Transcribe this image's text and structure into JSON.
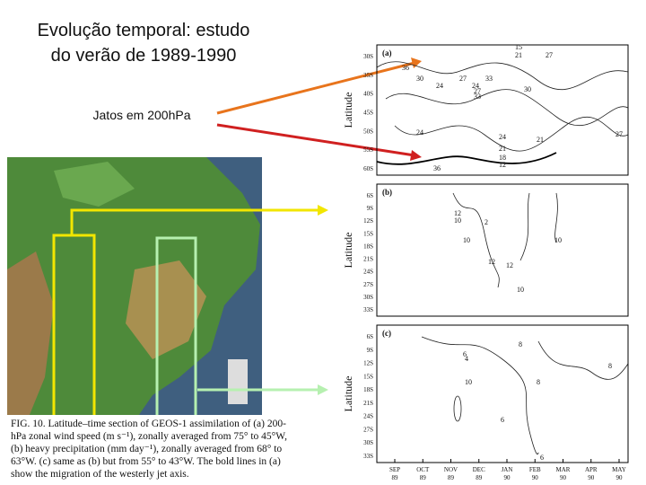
{
  "slide": {
    "title": [
      "Evolução temporal: estudo",
      "do verão de 1989-1990"
    ],
    "label": "Jatos em 200hPa",
    "caption": [
      "FIG. 10. Latitude–time section of GEOS-1 assimilation of (a) 200-",
      "hPa zonal wind speed (m s⁻¹), zonally averaged from 75° to 45°W,",
      "(b) heavy precipitation (mm day⁻¹), zonally averaged from 68° to",
      "63°W. (c) same as (b) but from 55° to 43°W. The bold lines in (a)",
      "show the migration of the westerly jet axis."
    ],
    "figure": {
      "panels": [
        {
          "tag": "(a)",
          "y_label": "Latitude",
          "yticks": [
            "30S",
            "35S",
            "40S",
            "45S",
            "50S",
            "55S",
            "60S"
          ],
          "contour_labels": [
            "15",
            "21",
            "27",
            "36",
            "30",
            "24",
            "27",
            "33",
            "24",
            "27",
            "33",
            "30",
            "24",
            "21",
            "18",
            "12",
            "24",
            "21",
            "36",
            "27"
          ]
        },
        {
          "tag": "(b)",
          "y_label": "Latitude",
          "yticks": [
            "6S",
            "9S",
            "12S",
            "15S",
            "18S",
            "21S",
            "24S",
            "27S",
            "30S",
            "33S"
          ],
          "contour_labels": [
            "12",
            "10",
            "10",
            "2",
            "12",
            "10",
            "12",
            "10"
          ]
        },
        {
          "tag": "(c)",
          "y_label": "Latitude",
          "yticks": [
            "6S",
            "9S",
            "12S",
            "15S",
            "18S",
            "21S",
            "24S",
            "27S",
            "30S",
            "33S"
          ],
          "contour_labels": [
            "6",
            "8",
            "4",
            "10",
            "8",
            "6",
            "8",
            "6"
          ]
        }
      ],
      "months": [
        "SEP",
        "OCT",
        "NOV",
        "DEC",
        "JAN",
        "FEB",
        "MAR",
        "APR",
        "MAY"
      ],
      "years": [
        "89",
        "89",
        "89",
        "89",
        "90",
        "90",
        "90",
        "90",
        "90"
      ]
    }
  }
}
